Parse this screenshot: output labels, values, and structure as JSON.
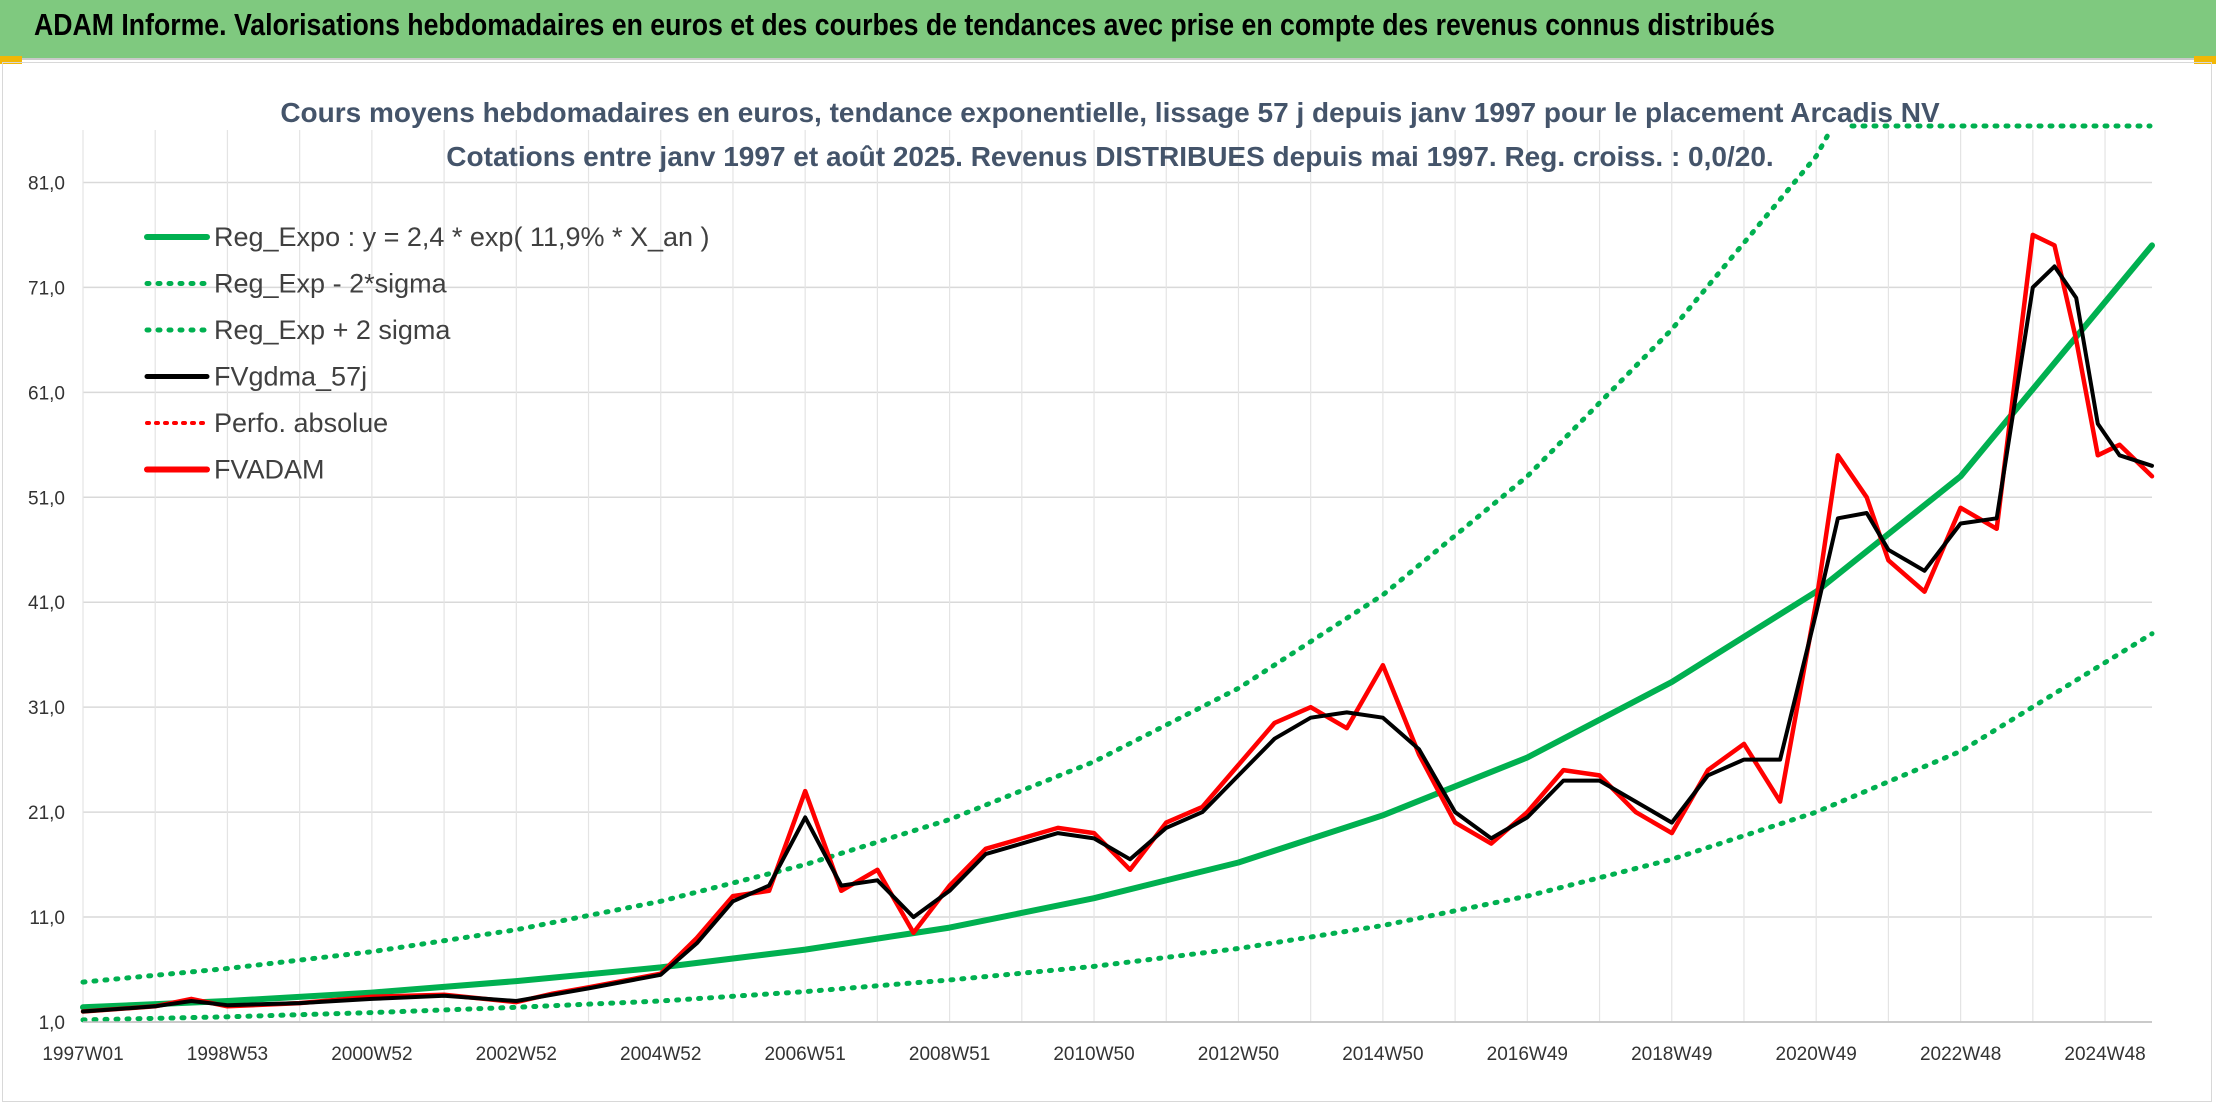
{
  "banner": {
    "title": "ADAM Informe. Valorisations hebdomadaires en euros et des courbes de tendances avec prise en compte des revenus connus distribués"
  },
  "colors": {
    "banner_bg": "#7fc97f",
    "regression": "#00b050",
    "sigma_bands": "#00b050",
    "smoothed": "#000000",
    "price": "#ff0000",
    "corner_accent": "#f2b705"
  },
  "chart_data": {
    "type": "line",
    "title": "Cours moyens hebdomadaires en euros, tendance exponentielle, lissage 57 j depuis janv 1997 pour le placement Arcadis NV",
    "subtitle": "Cotations entre janv 1997 et août 2025. Revenus DISTRIBUES depuis mai 1997. Reg. croiss. : 0,0/20.",
    "x_range": [
      1997.0,
      2025.65
    ],
    "ylim": [
      1.0,
      86.0
    ],
    "y_ticks": [
      "1,0",
      "11,0",
      "21,0",
      "31,0",
      "41,0",
      "51,0",
      "61,0",
      "71,0",
      "81,0"
    ],
    "y_tick_values": [
      1,
      11,
      21,
      31,
      41,
      51,
      61,
      71,
      81
    ],
    "x_tick_labels": [
      "1997W01",
      "1998W53",
      "2000W52",
      "2002W52",
      "2004W52",
      "2006W51",
      "2008W51",
      "2010W50",
      "2012W50",
      "2014W50",
      "2016W49",
      "2018W49",
      "2020W49",
      "2022W48",
      "2024W48"
    ],
    "x_tick_values": [
      1997.0,
      1999.0,
      2001.0,
      2003.0,
      2005.0,
      2007.0,
      2009.0,
      2011.0,
      2013.0,
      2015.0,
      2017.0,
      2019.0,
      2021.0,
      2023.0,
      2025.0
    ],
    "grid": true,
    "legend": {
      "position": "top-left",
      "entries": [
        {
          "label": "Reg_Expo : y = 2,4 * exp( 11,9% *  X_an )",
          "style": "solid-green"
        },
        {
          "label": "Reg_Exp - 2*sigma",
          "style": "dotted-green"
        },
        {
          "label": "Reg_Exp + 2 sigma",
          "style": "dotted-green"
        },
        {
          "label": "FVgdma_57j",
          "style": "solid-black"
        },
        {
          "label": "Perfo. absolue",
          "style": "dotted-red"
        },
        {
          "label": "FVADAM",
          "style": "solid-red"
        }
      ]
    },
    "series": [
      {
        "name": "Reg_Expo : y = 2,4 * exp( 11,9% *  X_an )",
        "x": [
          1997.0,
          1999.0,
          2001.0,
          2003.0,
          2005.0,
          2007.0,
          2009.0,
          2011.0,
          2013.0,
          2015.0,
          2017.0,
          2019.0,
          2021.0,
          2023.0,
          2025.65
        ],
        "y": [
          2.4,
          3.0,
          3.8,
          4.9,
          6.2,
          7.9,
          10.0,
          12.8,
          16.2,
          20.7,
          26.2,
          33.4,
          42.0,
          53.0,
          75.0
        ]
      },
      {
        "name": "Reg_Exp - 2*sigma",
        "x": [
          1997.0,
          1999.0,
          2001.0,
          2003.0,
          2005.0,
          2007.0,
          2009.0,
          2011.0,
          2013.0,
          2015.0,
          2017.0,
          2019.0,
          2021.0,
          2023.0,
          2025.65
        ],
        "y": [
          1.2,
          1.5,
          1.9,
          2.4,
          3.0,
          3.9,
          5.0,
          6.3,
          8.0,
          10.2,
          13.0,
          16.5,
          21.0,
          26.8,
          38.0
        ]
      },
      {
        "name": "Reg_Exp + 2 sigma",
        "x": [
          1997.0,
          1999.0,
          2001.0,
          2003.0,
          2005.0,
          2007.0,
          2009.0,
          2011.0,
          2013.0,
          2015.0,
          2017.0,
          2019.0,
          2021.0,
          2021.2
        ],
        "y": [
          4.8,
          6.1,
          7.7,
          9.8,
          12.5,
          16.0,
          20.3,
          25.8,
          32.8,
          41.7,
          53.0,
          67.0,
          83.5,
          86.0
        ]
      },
      {
        "name": "FVgdma_57j",
        "x": [
          1997.0,
          1998.0,
          1998.5,
          1999.0,
          2000.0,
          2001.0,
          2002.0,
          2003.0,
          2003.5,
          2004.0,
          2005.0,
          2005.5,
          2006.0,
          2006.5,
          2007.0,
          2007.5,
          2008.0,
          2008.5,
          2009.0,
          2009.5,
          2010.0,
          2010.5,
          2011.0,
          2011.5,
          2012.0,
          2012.5,
          2013.0,
          2013.5,
          2014.0,
          2014.5,
          2015.0,
          2015.5,
          2016.0,
          2016.5,
          2017.0,
          2017.5,
          2018.0,
          2018.5,
          2019.0,
          2019.5,
          2020.0,
          2020.5,
          2021.0,
          2021.3,
          2021.7,
          2022.0,
          2022.5,
          2023.0,
          2023.5,
          2024.0,
          2024.3,
          2024.6,
          2024.9,
          2025.2,
          2025.65
        ],
        "y": [
          2.0,
          2.5,
          3.0,
          2.6,
          2.8,
          3.2,
          3.5,
          3.0,
          3.6,
          4.2,
          5.5,
          8.5,
          12.5,
          14.0,
          20.5,
          14.0,
          14.5,
          11.0,
          13.5,
          17.0,
          18.0,
          19.0,
          18.5,
          16.5,
          19.5,
          21.0,
          24.5,
          28.0,
          30.0,
          30.5,
          30.0,
          27.0,
          21.0,
          18.5,
          20.5,
          24.0,
          24.0,
          22.0,
          20.0,
          24.5,
          26.0,
          26.0,
          40.0,
          49.0,
          49.5,
          46.0,
          44.0,
          48.5,
          49.0,
          71.0,
          73.0,
          70.0,
          58.0,
          55.0,
          54.0
        ]
      },
      {
        "name": "FVADAM",
        "x": [
          1997.0,
          1998.0,
          1998.5,
          1999.0,
          2000.0,
          2001.0,
          2002.0,
          2003.0,
          2003.5,
          2004.0,
          2005.0,
          2005.5,
          2006.0,
          2006.5,
          2007.0,
          2007.5,
          2008.0,
          2008.5,
          2009.0,
          2009.5,
          2010.0,
          2010.5,
          2011.0,
          2011.5,
          2012.0,
          2012.5,
          2013.0,
          2013.5,
          2014.0,
          2014.5,
          2015.0,
          2015.5,
          2016.0,
          2016.5,
          2017.0,
          2017.5,
          2018.0,
          2018.5,
          2019.0,
          2019.5,
          2020.0,
          2020.5,
          2021.0,
          2021.3,
          2021.7,
          2022.0,
          2022.5,
          2023.0,
          2023.5,
          2024.0,
          2024.3,
          2024.6,
          2024.9,
          2025.2,
          2025.65
        ],
        "y": [
          2.0,
          2.5,
          3.2,
          2.5,
          2.8,
          3.4,
          3.6,
          2.9,
          3.7,
          4.3,
          5.6,
          9.0,
          13.0,
          13.5,
          23.0,
          13.5,
          15.5,
          9.5,
          14.0,
          17.5,
          18.5,
          19.5,
          19.0,
          15.5,
          20.0,
          21.5,
          25.5,
          29.5,
          31.0,
          29.0,
          35.0,
          26.5,
          20.0,
          18.0,
          21.0,
          25.0,
          24.5,
          21.0,
          19.0,
          25.0,
          27.5,
          22.0,
          41.0,
          55.0,
          51.0,
          45.0,
          42.0,
          50.0,
          48.0,
          76.0,
          75.0,
          66.0,
          55.0,
          56.0,
          53.0
        ]
      }
    ]
  }
}
